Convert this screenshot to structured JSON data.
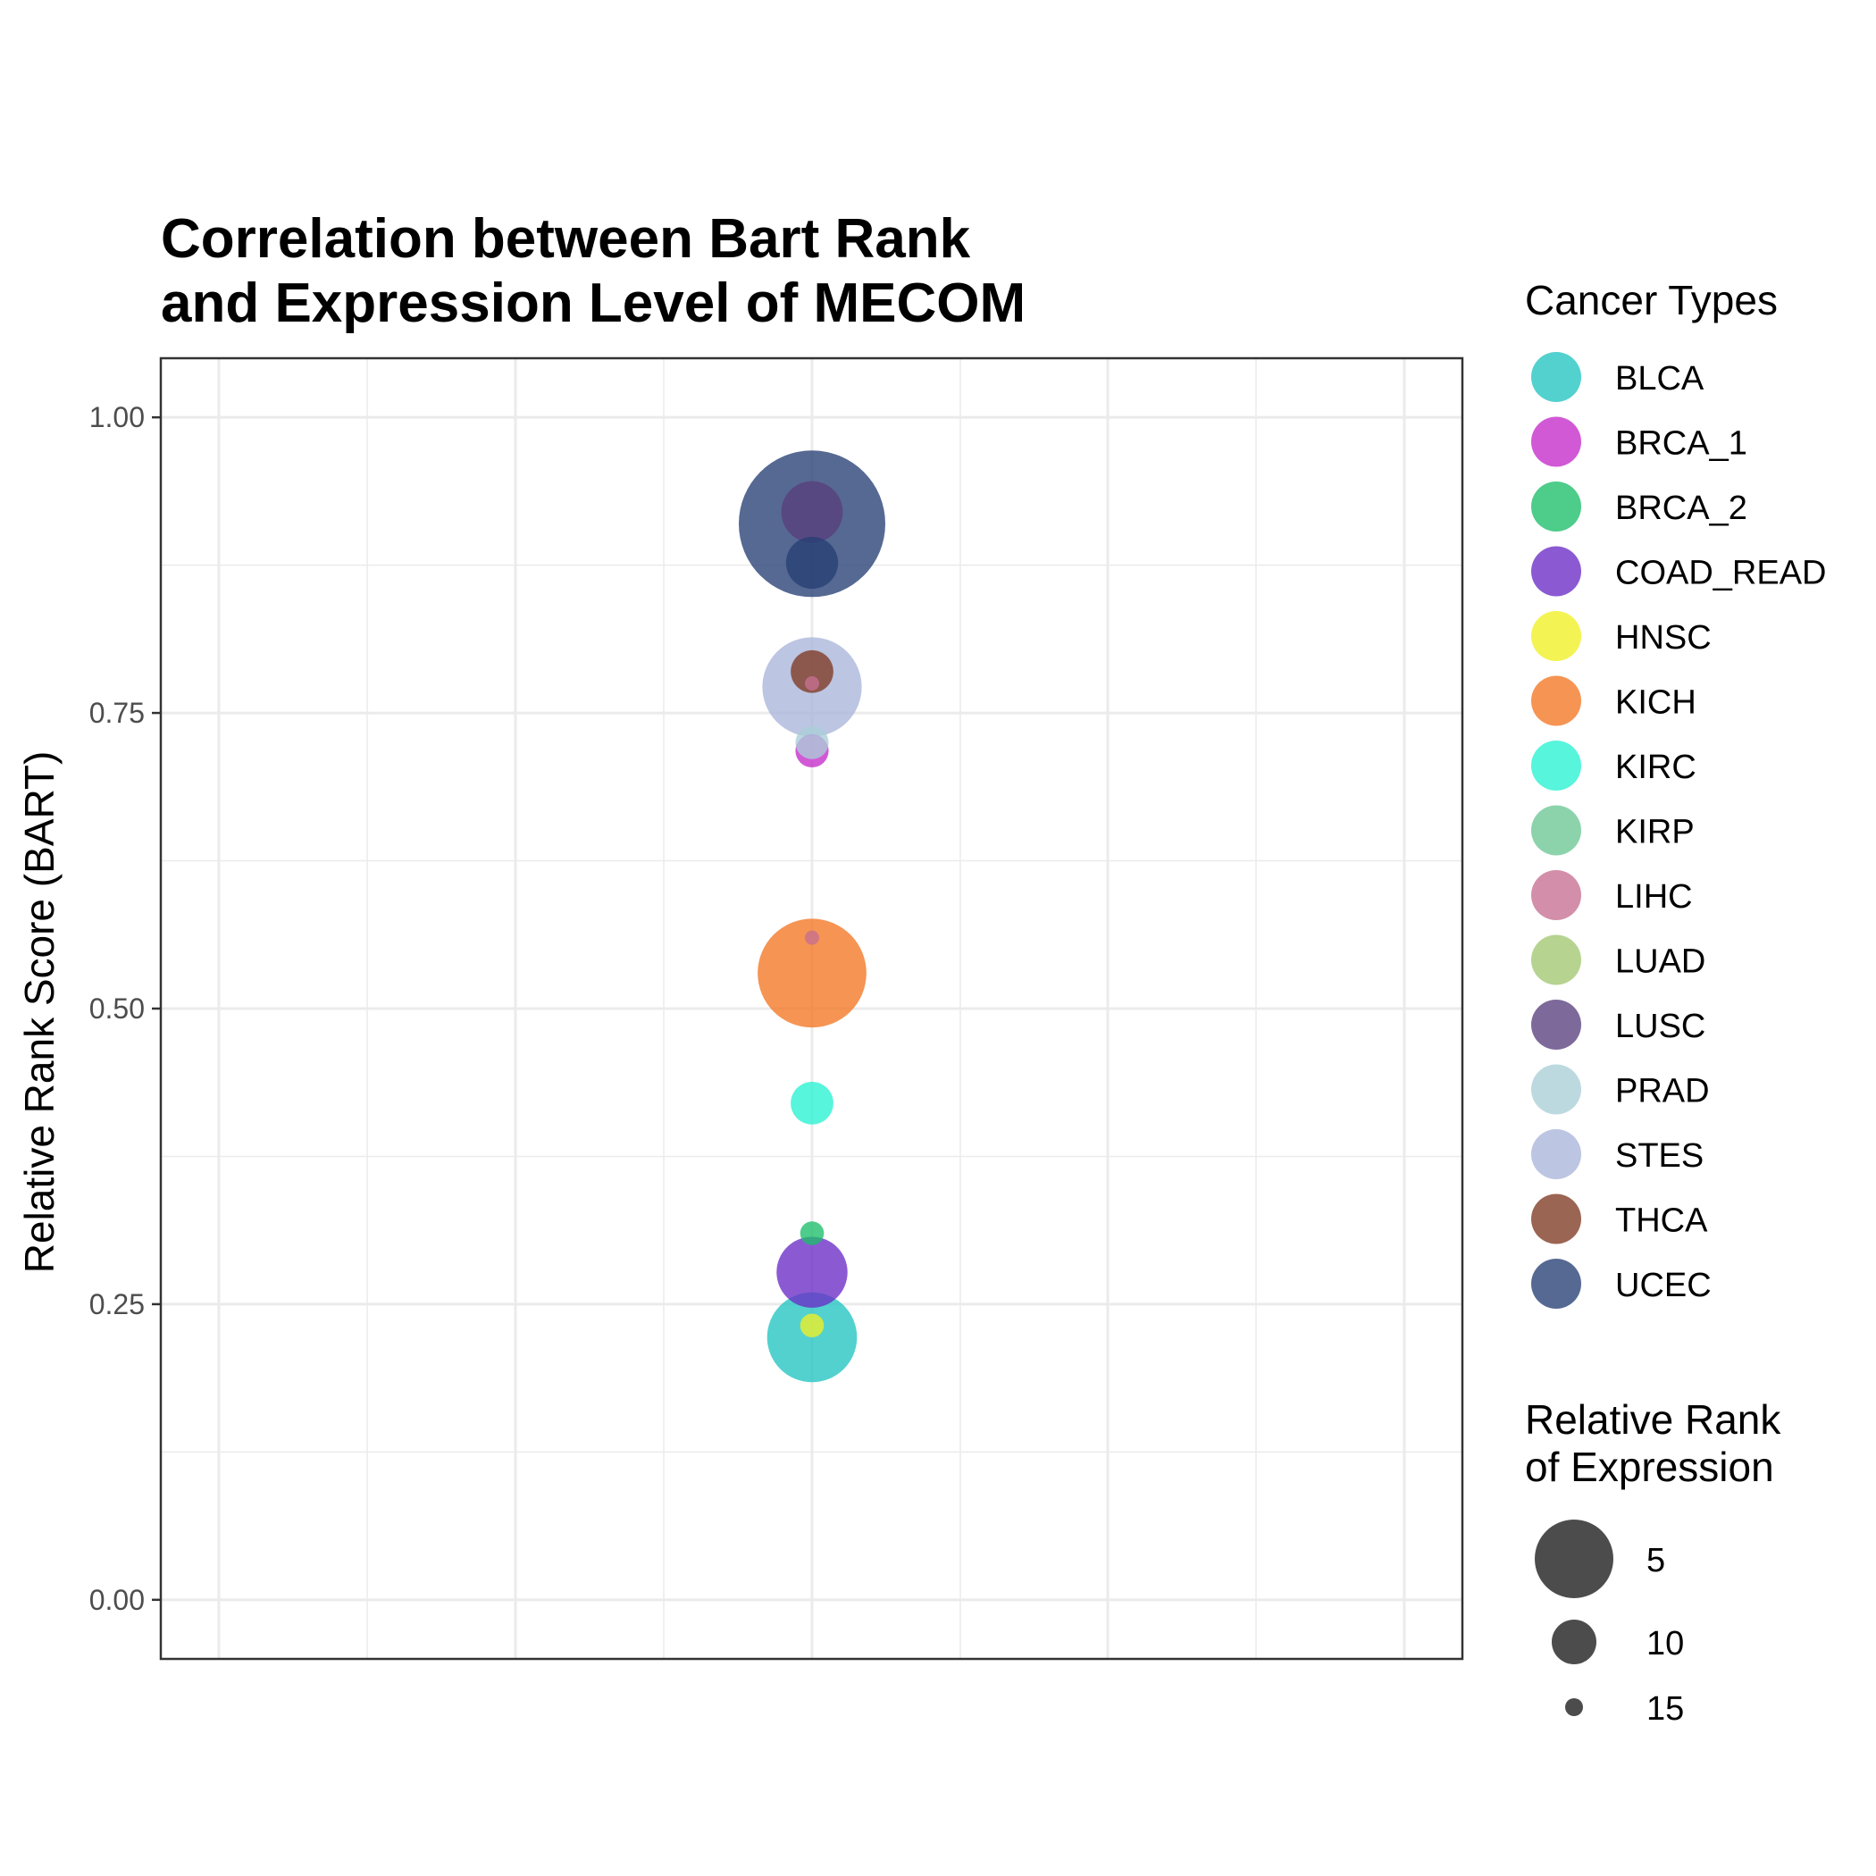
{
  "chart_data": {
    "type": "scatter",
    "title_lines": [
      "Correlation between Bart Rank",
      "and Expression Level of MECOM"
    ],
    "xlabel": "",
    "ylabel": "Relative Rank Score (BART)",
    "ylim": [
      -0.05,
      1.05
    ],
    "y_ticks": [
      0.0,
      0.25,
      0.5,
      0.75,
      1.0
    ],
    "y_tick_labels": [
      "0.00",
      "0.25",
      "0.50",
      "0.75",
      "1.00"
    ],
    "grid": true,
    "legend_position": "right",
    "color_legend": {
      "title": "Cancer Types",
      "items": [
        {
          "label": "BLCA",
          "color": "#21C4C1"
        },
        {
          "label": "BRCA_1",
          "color": "#C42AC9"
        },
        {
          "label": "BRCA_2",
          "color": "#1CBE69"
        },
        {
          "label": "COAD_READ",
          "color": "#6A2BC7"
        },
        {
          "label": "HNSC",
          "color": "#EFEF24"
        },
        {
          "label": "KICH",
          "color": "#F47623"
        },
        {
          "label": "KIRC",
          "color": "#26F2D2"
        },
        {
          "label": "KIRP",
          "color": "#6BC695"
        },
        {
          "label": "LIHC",
          "color": "#C66F91"
        },
        {
          "label": "LUAD",
          "color": "#A1C771"
        },
        {
          "label": "LUSC",
          "color": "#583F7D"
        },
        {
          "label": "PRAD",
          "color": "#ABCED7"
        },
        {
          "label": "STES",
          "color": "#A9B5DA"
        },
        {
          "label": "THCA",
          "color": "#7F3A22"
        },
        {
          "label": "UCEC",
          "color": "#263F75"
        }
      ]
    },
    "size_legend": {
      "title_lines": [
        "Relative Rank",
        "of Expression"
      ],
      "items": [
        {
          "label": "5",
          "value": 5
        },
        {
          "label": "10",
          "value": 10
        },
        {
          "label": "15",
          "value": 15
        }
      ]
    },
    "points": [
      {
        "type": "UCEC",
        "y": 0.91,
        "expr_rank": 1
      },
      {
        "type": "STES",
        "y": 0.772,
        "expr_rank": 6
      },
      {
        "type": "KICH",
        "y": 0.53,
        "expr_rank": 5
      },
      {
        "type": "BLCA",
        "y": 0.222,
        "expr_rank": 7
      },
      {
        "type": "COAD_READ",
        "y": 0.277,
        "expr_rank": 9
      },
      {
        "type": "LUSC",
        "y": 0.92,
        "expr_rank": 10
      },
      {
        "type": "UCEC",
        "y": 0.877,
        "expr_rank": 11
      },
      {
        "type": "KIRC",
        "y": 0.42,
        "expr_rank": 12
      },
      {
        "type": "THCA",
        "y": 0.785,
        "expr_rank": 12
      },
      {
        "type": "BRCA_1",
        "y": 0.718,
        "expr_rank": 13
      },
      {
        "type": "PRAD",
        "y": 0.725,
        "expr_rank": 13
      },
      {
        "type": "BRCA_2",
        "y": 0.31,
        "expr_rank": 14
      },
      {
        "type": "HNSC",
        "y": 0.232,
        "expr_rank": 14
      },
      {
        "type": "LIHC",
        "y": 0.56,
        "expr_rank": 15
      },
      {
        "type": "LIHC",
        "y": 0.775,
        "expr_rank": 15
      }
    ]
  }
}
